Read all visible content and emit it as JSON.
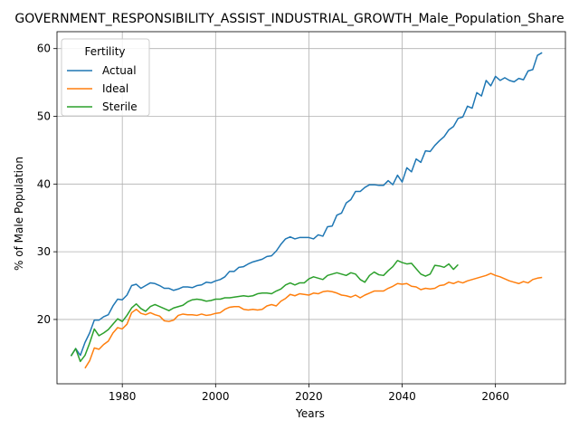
{
  "chart_data": {
    "type": "line",
    "title": "GOVERNMENT_RESPONSIBILITY_ASSIST_INDUSTRIAL_GROWTH_Male_Population_Share",
    "xlabel": "Years",
    "ylabel": "% of Male Population",
    "xlim": [
      1966,
      2075
    ],
    "ylim": [
      10.5,
      62.5
    ],
    "xticks": [
      1980,
      2000,
      2020,
      2040,
      2060
    ],
    "yticks": [
      20,
      30,
      40,
      50,
      60
    ],
    "grid": true,
    "legend": {
      "title": "Fertility",
      "placement": "upper-left"
    },
    "series": [
      {
        "name": "Actual",
        "color": "#1f77b4",
        "points": [
          [
            1969,
            14.6
          ],
          [
            1970,
            15.7
          ],
          [
            1971,
            14.7
          ],
          [
            1972,
            16.6
          ],
          [
            1973,
            18.0
          ],
          [
            1974,
            19.9
          ],
          [
            1975,
            19.9
          ],
          [
            1976,
            20.4
          ],
          [
            1977,
            20.7
          ],
          [
            1978,
            22.0
          ],
          [
            1979,
            23.0
          ],
          [
            1980,
            22.9
          ],
          [
            1981,
            23.6
          ],
          [
            1982,
            25.0
          ],
          [
            1983,
            25.2
          ],
          [
            1984,
            24.6
          ],
          [
            1985,
            25.0
          ],
          [
            1986,
            25.4
          ],
          [
            1987,
            25.3
          ],
          [
            1988,
            25.0
          ],
          [
            1989,
            24.6
          ],
          [
            1990,
            24.6
          ],
          [
            1991,
            24.3
          ],
          [
            1992,
            24.5
          ],
          [
            1993,
            24.8
          ],
          [
            1994,
            24.8
          ],
          [
            1995,
            24.7
          ],
          [
            1996,
            25.0
          ],
          [
            1997,
            25.1
          ],
          [
            1998,
            25.5
          ],
          [
            1999,
            25.4
          ],
          [
            2000,
            25.7
          ],
          [
            2001,
            25.9
          ],
          [
            2002,
            26.3
          ],
          [
            2003,
            27.1
          ],
          [
            2004,
            27.1
          ],
          [
            2005,
            27.7
          ],
          [
            2006,
            27.8
          ],
          [
            2007,
            28.2
          ],
          [
            2008,
            28.5
          ],
          [
            2009,
            28.7
          ],
          [
            2010,
            28.9
          ],
          [
            2011,
            29.3
          ],
          [
            2012,
            29.4
          ],
          [
            2013,
            30.1
          ],
          [
            2014,
            31.1
          ],
          [
            2015,
            31.9
          ],
          [
            2016,
            32.2
          ],
          [
            2017,
            31.9
          ],
          [
            2018,
            32.1
          ],
          [
            2019,
            32.1
          ],
          [
            2020,
            32.1
          ],
          [
            2021,
            31.9
          ],
          [
            2022,
            32.5
          ],
          [
            2023,
            32.3
          ],
          [
            2024,
            33.7
          ],
          [
            2025,
            33.8
          ],
          [
            2026,
            35.4
          ],
          [
            2027,
            35.7
          ],
          [
            2028,
            37.2
          ],
          [
            2029,
            37.7
          ],
          [
            2030,
            38.9
          ],
          [
            2031,
            38.9
          ],
          [
            2032,
            39.5
          ],
          [
            2033,
            39.9
          ],
          [
            2034,
            39.9
          ],
          [
            2035,
            39.8
          ],
          [
            2036,
            39.8
          ],
          [
            2037,
            40.5
          ],
          [
            2038,
            39.9
          ],
          [
            2039,
            41.3
          ],
          [
            2040,
            40.3
          ],
          [
            2041,
            42.4
          ],
          [
            2042,
            41.8
          ],
          [
            2043,
            43.7
          ],
          [
            2044,
            43.2
          ],
          [
            2045,
            44.9
          ],
          [
            2046,
            44.8
          ],
          [
            2047,
            45.7
          ],
          [
            2048,
            46.4
          ],
          [
            2049,
            47.0
          ],
          [
            2050,
            48.0
          ],
          [
            2051,
            48.5
          ],
          [
            2052,
            49.7
          ],
          [
            2053,
            49.9
          ],
          [
            2054,
            51.5
          ],
          [
            2055,
            51.2
          ],
          [
            2056,
            53.5
          ],
          [
            2057,
            53.0
          ],
          [
            2058,
            55.3
          ],
          [
            2059,
            54.5
          ],
          [
            2060,
            55.9
          ],
          [
            2061,
            55.3
          ],
          [
            2062,
            55.7
          ],
          [
            2063,
            55.3
          ],
          [
            2064,
            55.1
          ],
          [
            2065,
            55.6
          ],
          [
            2066,
            55.4
          ],
          [
            2067,
            56.7
          ],
          [
            2068,
            56.9
          ],
          [
            2069,
            59.0
          ],
          [
            2070,
            59.4
          ]
        ]
      },
      {
        "name": "Ideal",
        "color": "#ff7f0e",
        "points": [
          [
            1972,
            12.8
          ],
          [
            1973,
            13.9
          ],
          [
            1974,
            15.8
          ],
          [
            1975,
            15.6
          ],
          [
            1976,
            16.3
          ],
          [
            1977,
            16.8
          ],
          [
            1978,
            18.0
          ],
          [
            1979,
            18.8
          ],
          [
            1980,
            18.6
          ],
          [
            1981,
            19.3
          ],
          [
            1982,
            21.0
          ],
          [
            1983,
            21.5
          ],
          [
            1984,
            20.9
          ],
          [
            1985,
            20.7
          ],
          [
            1986,
            21.0
          ],
          [
            1987,
            20.7
          ],
          [
            1988,
            20.5
          ],
          [
            1989,
            19.8
          ],
          [
            1990,
            19.7
          ],
          [
            1991,
            19.9
          ],
          [
            1992,
            20.6
          ],
          [
            1993,
            20.8
          ],
          [
            1994,
            20.7
          ],
          [
            1995,
            20.7
          ],
          [
            1996,
            20.6
          ],
          [
            1997,
            20.8
          ],
          [
            1998,
            20.6
          ],
          [
            1999,
            20.7
          ],
          [
            2000,
            20.9
          ],
          [
            2001,
            21.0
          ],
          [
            2002,
            21.5
          ],
          [
            2003,
            21.8
          ],
          [
            2004,
            21.9
          ],
          [
            2005,
            21.9
          ],
          [
            2006,
            21.5
          ],
          [
            2007,
            21.4
          ],
          [
            2008,
            21.5
          ],
          [
            2009,
            21.4
          ],
          [
            2010,
            21.5
          ],
          [
            2011,
            22.0
          ],
          [
            2012,
            22.2
          ],
          [
            2013,
            22.0
          ],
          [
            2014,
            22.7
          ],
          [
            2015,
            23.1
          ],
          [
            2016,
            23.7
          ],
          [
            2017,
            23.5
          ],
          [
            2018,
            23.8
          ],
          [
            2019,
            23.7
          ],
          [
            2020,
            23.6
          ],
          [
            2021,
            23.9
          ],
          [
            2022,
            23.8
          ],
          [
            2023,
            24.1
          ],
          [
            2024,
            24.2
          ],
          [
            2025,
            24.1
          ],
          [
            2026,
            23.9
          ],
          [
            2027,
            23.6
          ],
          [
            2028,
            23.5
          ],
          [
            2029,
            23.3
          ],
          [
            2030,
            23.6
          ],
          [
            2031,
            23.2
          ],
          [
            2032,
            23.6
          ],
          [
            2033,
            23.9
          ],
          [
            2034,
            24.2
          ],
          [
            2035,
            24.2
          ],
          [
            2036,
            24.2
          ],
          [
            2037,
            24.6
          ],
          [
            2038,
            24.9
          ],
          [
            2039,
            25.3
          ],
          [
            2040,
            25.2
          ],
          [
            2041,
            25.3
          ],
          [
            2042,
            24.9
          ],
          [
            2043,
            24.8
          ],
          [
            2044,
            24.4
          ],
          [
            2045,
            24.6
          ],
          [
            2046,
            24.5
          ],
          [
            2047,
            24.6
          ],
          [
            2048,
            25.0
          ],
          [
            2049,
            25.1
          ],
          [
            2050,
            25.5
          ],
          [
            2051,
            25.3
          ],
          [
            2052,
            25.6
          ],
          [
            2053,
            25.4
          ],
          [
            2054,
            25.7
          ],
          [
            2055,
            25.9
          ],
          [
            2056,
            26.1
          ],
          [
            2057,
            26.3
          ],
          [
            2058,
            26.5
          ],
          [
            2059,
            26.8
          ],
          [
            2060,
            26.5
          ],
          [
            2061,
            26.3
          ],
          [
            2062,
            26.0
          ],
          [
            2063,
            25.7
          ],
          [
            2064,
            25.5
          ],
          [
            2065,
            25.3
          ],
          [
            2066,
            25.6
          ],
          [
            2067,
            25.4
          ],
          [
            2068,
            25.9
          ],
          [
            2069,
            26.1
          ],
          [
            2070,
            26.2
          ]
        ]
      },
      {
        "name": "Sterile",
        "color": "#2ca02c",
        "points": [
          [
            1969,
            14.6
          ],
          [
            1970,
            15.7
          ],
          [
            1971,
            13.8
          ],
          [
            1972,
            14.7
          ],
          [
            1973,
            16.5
          ],
          [
            1974,
            18.6
          ],
          [
            1975,
            17.6
          ],
          [
            1976,
            18.0
          ],
          [
            1977,
            18.5
          ],
          [
            1978,
            19.3
          ],
          [
            1979,
            20.1
          ],
          [
            1980,
            19.7
          ],
          [
            1981,
            20.6
          ],
          [
            1982,
            21.7
          ],
          [
            1983,
            22.3
          ],
          [
            1984,
            21.6
          ],
          [
            1985,
            21.2
          ],
          [
            1986,
            21.9
          ],
          [
            1987,
            22.2
          ],
          [
            1988,
            21.9
          ],
          [
            1989,
            21.6
          ],
          [
            1990,
            21.3
          ],
          [
            1991,
            21.7
          ],
          [
            1992,
            21.9
          ],
          [
            1993,
            22.1
          ],
          [
            1994,
            22.6
          ],
          [
            1995,
            22.9
          ],
          [
            1996,
            23.0
          ],
          [
            1997,
            22.9
          ],
          [
            1998,
            22.7
          ],
          [
            1999,
            22.8
          ],
          [
            2000,
            23.0
          ],
          [
            2001,
            23.0
          ],
          [
            2002,
            23.2
          ],
          [
            2003,
            23.2
          ],
          [
            2004,
            23.3
          ],
          [
            2005,
            23.4
          ],
          [
            2006,
            23.5
          ],
          [
            2007,
            23.4
          ],
          [
            2008,
            23.5
          ],
          [
            2009,
            23.8
          ],
          [
            2010,
            23.9
          ],
          [
            2011,
            23.9
          ],
          [
            2012,
            23.8
          ],
          [
            2013,
            24.2
          ],
          [
            2014,
            24.5
          ],
          [
            2015,
            25.1
          ],
          [
            2016,
            25.4
          ],
          [
            2017,
            25.1
          ],
          [
            2018,
            25.4
          ],
          [
            2019,
            25.4
          ],
          [
            2020,
            26.0
          ],
          [
            2021,
            26.3
          ],
          [
            2022,
            26.1
          ],
          [
            2023,
            25.9
          ],
          [
            2024,
            26.5
          ],
          [
            2025,
            26.7
          ],
          [
            2026,
            26.9
          ],
          [
            2027,
            26.7
          ],
          [
            2028,
            26.5
          ],
          [
            2029,
            26.9
          ],
          [
            2030,
            26.7
          ],
          [
            2031,
            25.9
          ],
          [
            2032,
            25.5
          ],
          [
            2033,
            26.5
          ],
          [
            2034,
            27.0
          ],
          [
            2035,
            26.6
          ],
          [
            2036,
            26.5
          ],
          [
            2037,
            27.2
          ],
          [
            2038,
            27.8
          ],
          [
            2039,
            28.7
          ],
          [
            2040,
            28.4
          ],
          [
            2041,
            28.2
          ],
          [
            2042,
            28.3
          ],
          [
            2043,
            27.5
          ],
          [
            2044,
            26.7
          ],
          [
            2045,
            26.4
          ],
          [
            2046,
            26.7
          ],
          [
            2047,
            28.0
          ],
          [
            2048,
            27.9
          ],
          [
            2049,
            27.7
          ],
          [
            2050,
            28.2
          ],
          [
            2051,
            27.4
          ],
          [
            2052,
            28.1
          ]
        ]
      }
    ]
  }
}
